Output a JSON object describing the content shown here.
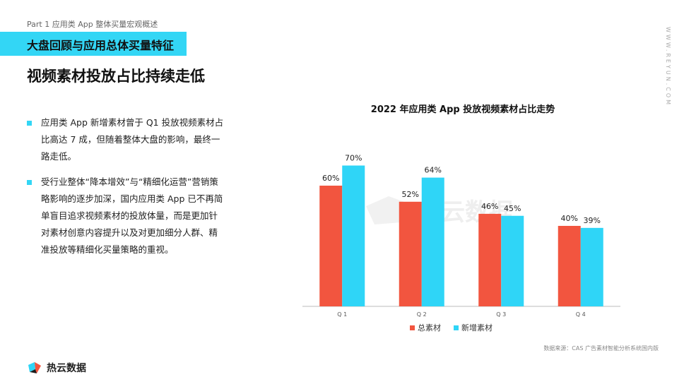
{
  "header": {
    "part": "Part 1 应用类 App 整体买量宏观概述",
    "section_title": "大盘回顾与应用总体买量特征",
    "main_title": "视频素材投放占比持续走低",
    "side_url": "WWW.REYUN.COM"
  },
  "bullets": [
    "应用类 App 新增素材曾于 Q1 投放视频素材占比高达 7 成，但随着整体大盘的影响，最终一路走低。",
    "受行业整体“降本增效”与“精细化运营”营销策略影响的逐步加深，国内应用类 App 已不再简单盲目追求视频素材的投放体量，而是更加针对素材创意内容提升以及对更加细分人群、精准投放等精细化买量策略的重视。"
  ],
  "chart_data": {
    "type": "bar",
    "title": "2022 年应用类 App 投放视频素材占比走势",
    "categories": [
      "Q 1",
      "Q 2",
      "Q 3",
      "Q 4"
    ],
    "series": [
      {
        "name": "总素材",
        "values": [
          60,
          52,
          46,
          40
        ],
        "labels": [
          "60%",
          "52%",
          "46%",
          "40%"
        ],
        "color": "#f2553f"
      },
      {
        "name": "新增素材",
        "values": [
          70,
          64,
          45,
          39
        ],
        "labels": [
          "70%",
          "64%",
          "45%",
          "39%"
        ],
        "color": "#2fd5f7"
      }
    ],
    "ylim": [
      0,
      100
    ],
    "grid": false,
    "legend_position": "bottom"
  },
  "watermark": "热云数据",
  "source": "数据来源：CAS 广告素材智能分析系统国内版",
  "logo_text": "热云数据"
}
